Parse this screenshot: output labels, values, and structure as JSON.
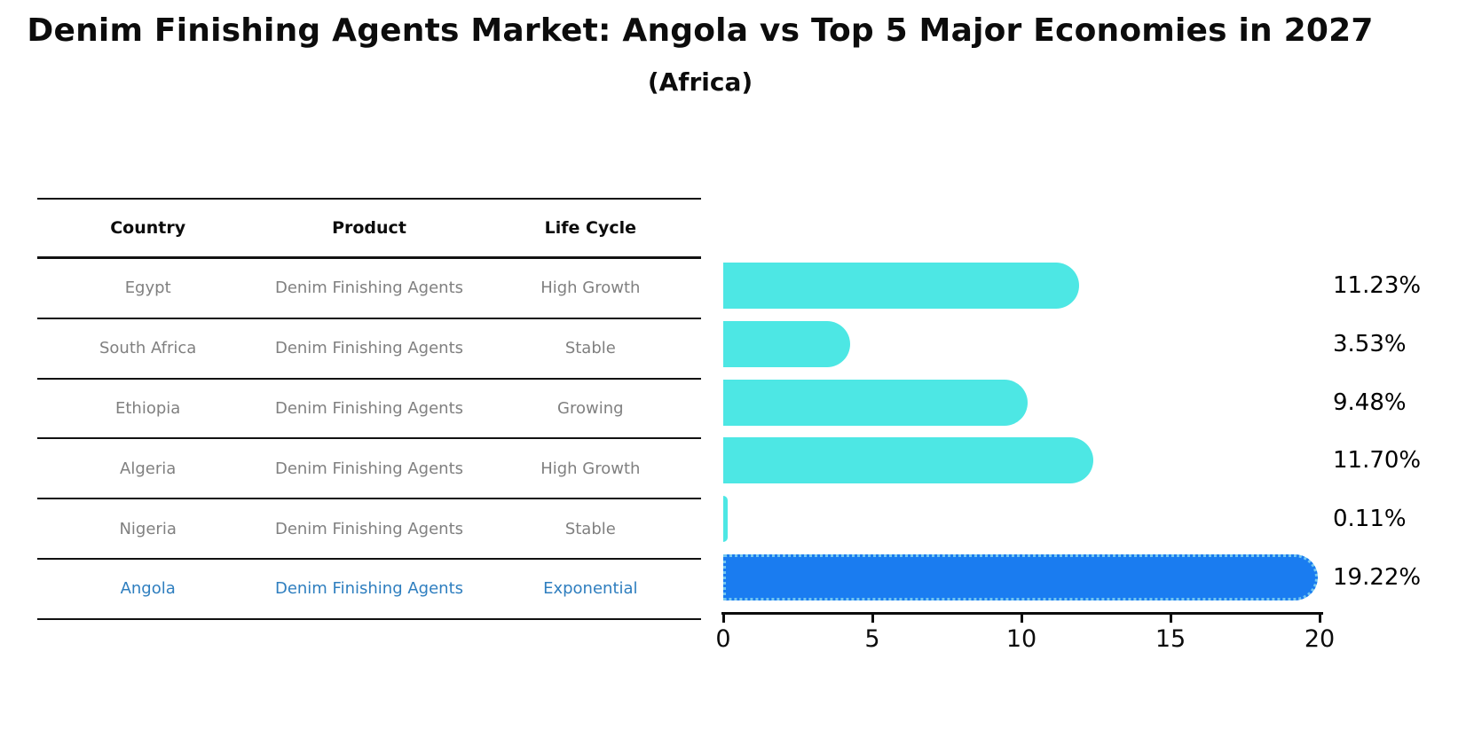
{
  "chart": {
    "title": "Denim Finishing Agents Market: Angola vs Top 5 Major Economies in 2027",
    "subtitle": "(Africa)"
  },
  "table": {
    "headers": [
      "Country",
      "Product",
      "Life Cycle"
    ],
    "rows": [
      {
        "country": "Egypt",
        "product": "Denim Finishing Agents",
        "life_cycle": "High Growth",
        "highlight": false
      },
      {
        "country": "South Africa",
        "product": "Denim Finishing Agents",
        "life_cycle": "Stable",
        "highlight": false
      },
      {
        "country": "Ethiopia",
        "product": "Denim Finishing Agents",
        "life_cycle": "Growing",
        "highlight": false
      },
      {
        "country": "Algeria",
        "product": "Denim Finishing Agents",
        "life_cycle": "High Growth",
        "highlight": false
      },
      {
        "country": "Nigeria",
        "product": "Denim Finishing Agents",
        "life_cycle": "Stable",
        "highlight": false
      },
      {
        "country": "Angola",
        "product": "Denim Finishing Agents",
        "life_cycle": "Exponential",
        "highlight": true
      }
    ]
  },
  "chart_data": {
    "type": "bar",
    "orientation": "horizontal",
    "title": "Denim Finishing Agents Market: Angola vs Top 5 Major Economies in 2027",
    "subtitle": "(Africa)",
    "categories": [
      "Egypt",
      "South Africa",
      "Ethiopia",
      "Algeria",
      "Nigeria",
      "Angola"
    ],
    "values": [
      11.23,
      3.53,
      9.48,
      11.7,
      0.11,
      19.22
    ],
    "value_labels": [
      "11.23%",
      "3.53%",
      "9.48%",
      "11.70%",
      "0.11%",
      "19.22%"
    ],
    "xlabel": "",
    "ylabel": "",
    "xlim": [
      0,
      20
    ],
    "xticks": [
      0,
      5,
      10,
      15,
      20
    ],
    "grid": false,
    "legend": "none",
    "bar_color": "#4DE7E4",
    "highlight_index": 5,
    "highlight_bar_color": "#1A7CF0",
    "highlight_border_style": "dotted",
    "highlight_text_color": "#2E7EBF",
    "row_text_color": "#808080",
    "axis_color": "#0c0c0c"
  }
}
